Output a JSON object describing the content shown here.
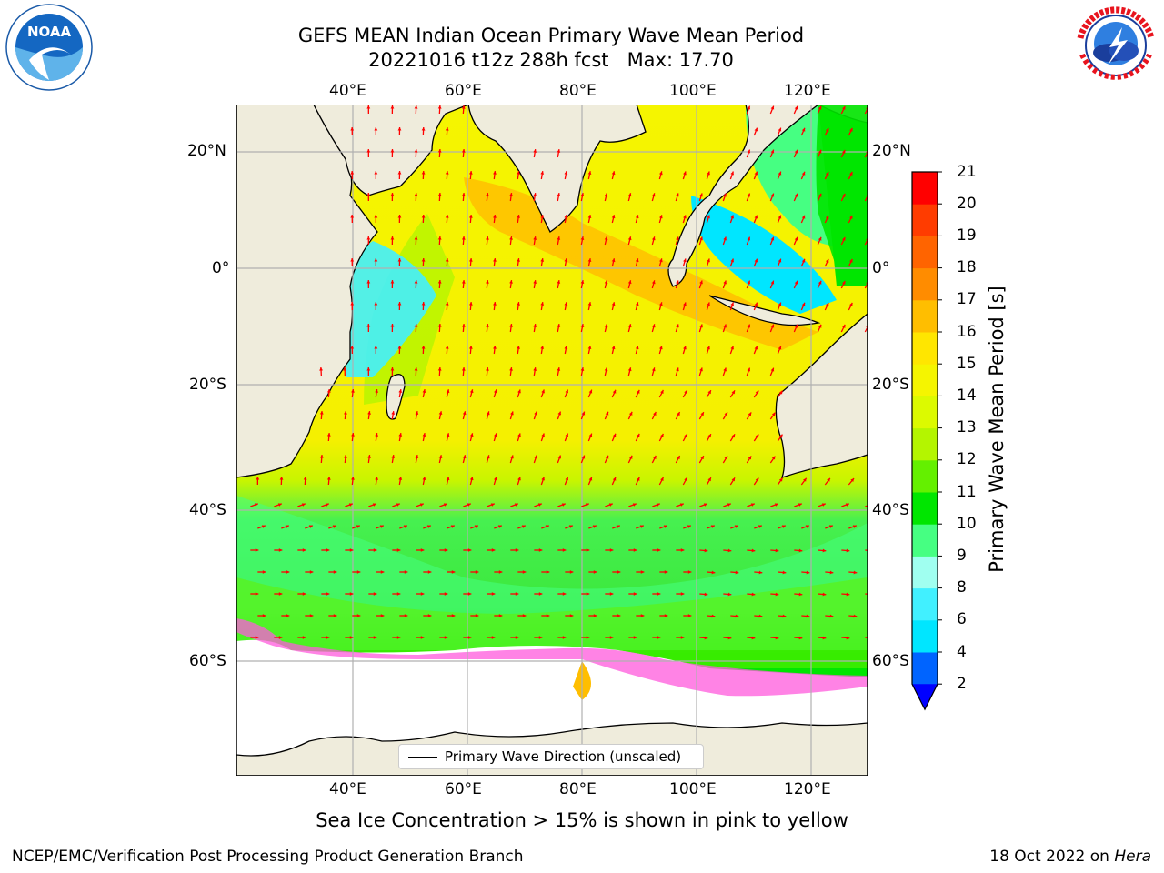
{
  "title": {
    "line1": "GEFS MEAN Indian Ocean Primary Wave Mean Period",
    "line2": "20221016 t12z 288h fcst   Max: 17.70"
  },
  "logos": {
    "left": "NOAA",
    "left_ring": "NATIONAL OCEANIC AND ATMOSPHERIC ADMINISTRATION · U.S. DEPARTMENT OF COMMERCE",
    "right_ring": "NATIONAL WEATHER SERVICE"
  },
  "map": {
    "lon_ticks_top": [
      "40°E",
      "60°E",
      "80°E",
      "100°E",
      "120°E"
    ],
    "lon_ticks_bottom": [
      "40°E",
      "60°E",
      "80°E",
      "100°E",
      "120°E"
    ],
    "lat_ticks_left": [
      "20°N",
      "0°",
      "20°S",
      "40°S",
      "60°S"
    ],
    "lat_ticks_right": [
      "20°N",
      "0°",
      "20°S",
      "40°S",
      "60°S"
    ],
    "legend_label": "Primary Wave Direction (unscaled)",
    "colors": {
      "land": "#efecdc",
      "ice_free_southern": "#ffffff",
      "arrow": "#ff0000",
      "grid": "#b0b0b0"
    }
  },
  "colorbar": {
    "label": "Primary Wave Mean Period [s]",
    "ticks": [
      "2",
      "4",
      "6",
      "8",
      "9",
      "10",
      "11",
      "12",
      "13",
      "14",
      "15",
      "16",
      "17",
      "18",
      "19",
      "20",
      "21"
    ],
    "colors": [
      "#0064ff",
      "#00e6ff",
      "#41f0ff",
      "#a0fff0",
      "#46ff82",
      "#00e600",
      "#64f000",
      "#b4f500",
      "#dcfa00",
      "#f5f500",
      "#ffe600",
      "#ffbe00",
      "#ff8c00",
      "#ff6400",
      "#ff3c00",
      "#ff0000"
    ],
    "extend_color": "#0000ff"
  },
  "caption": "Sea Ice Concentration > 15% is shown in pink to yellow",
  "footer": {
    "left": "NCEP/EMC/Verification Post Processing Product Generation Branch",
    "right_prefix": "18 Oct 2022 on ",
    "right_machine": "Hera"
  }
}
